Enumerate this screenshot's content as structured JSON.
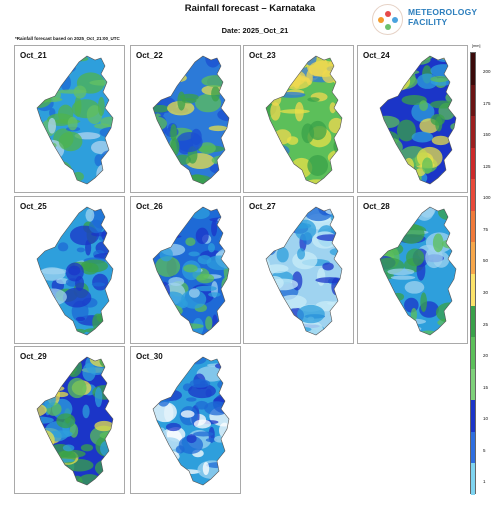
{
  "header": {
    "title": "Rainfall forecast – Karnataka",
    "date": "Date: 2025_Oct_21",
    "note": "*Rainfall forecast based on 2025_Oct_21:00_UTC"
  },
  "logo": {
    "line1": "METEOROLOGY",
    "line2": "FACILITY",
    "icon": "meteorology-logo-icon"
  },
  "panels": [
    {
      "label": "Oct_21",
      "palette": [
        "#2e9fdc",
        "#1e6ad6",
        "#4fb34f",
        "#64c064",
        "#b0d4f0"
      ]
    },
    {
      "label": "Oct_22",
      "palette": [
        "#2c7ad8",
        "#3aa14a",
        "#5cbf5a",
        "#e8e04a",
        "#1b4fd1"
      ]
    },
    {
      "label": "Oct_23",
      "palette": [
        "#5cbf5a",
        "#e8e04a",
        "#3aa14a",
        "#f0d850",
        "#2c7ad8"
      ]
    },
    {
      "label": "Oct_24",
      "palette": [
        "#1b35c8",
        "#e8e04a",
        "#5cbf5a",
        "#3aa14a",
        "#2e9fdc"
      ]
    },
    {
      "label": "Oct_25",
      "palette": [
        "#2e9fdc",
        "#1e6ad6",
        "#9fd3f0",
        "#3aa14a",
        "#1b35c8"
      ]
    },
    {
      "label": "Oct_26",
      "palette": [
        "#1e6ad6",
        "#1b35c8",
        "#2e9fdc",
        "#5cbf5a",
        "#9fd3f0"
      ]
    },
    {
      "label": "Oct_27",
      "palette": [
        "#9fd3f0",
        "#2e9fdc",
        "#1b35c8",
        "#1e6ad6",
        "#c8ecf8"
      ]
    },
    {
      "label": "Oct_28",
      "palette": [
        "#2e9fdc",
        "#5cbf5a",
        "#1b35c8",
        "#3aa14a",
        "#9fd3f0"
      ]
    },
    {
      "label": "Oct_29",
      "palette": [
        "#1b35c8",
        "#5cbf5a",
        "#2e9fdc",
        "#3aa14a",
        "#e8e04a"
      ]
    },
    {
      "label": "Oct_30",
      "palette": [
        "#2e9fdc",
        "#9fd3f0",
        "#1e6ad6",
        "#ffffff",
        "#1b35c8"
      ]
    }
  ],
  "legend": {
    "unit": "[mm]",
    "ticks": [
      "200",
      "175",
      "150",
      "125",
      "100",
      "75",
      "50",
      "30",
      "25",
      "20",
      "15",
      "10",
      "5",
      "1"
    ],
    "colors": [
      "#3b0a0a",
      "#6b1414",
      "#9c1f1f",
      "#cc2a2a",
      "#e84a3a",
      "#f07a3a",
      "#f6a64a",
      "#fbe26a",
      "#3aa14a",
      "#5cbf5a",
      "#7ed07a",
      "#1b35c8",
      "#2e6ee0",
      "#7fd4f0"
    ]
  }
}
